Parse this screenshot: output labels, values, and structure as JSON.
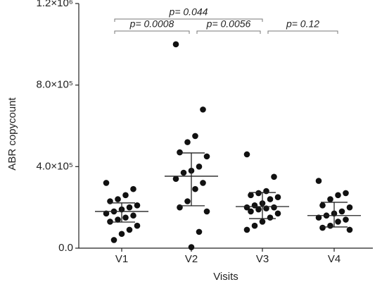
{
  "chart_data": {
    "type": "dotplot",
    "x_label": "Visits",
    "y_label": "ABR copycount",
    "ylim": [
      0,
      1200000
    ],
    "yticks": [
      {
        "value": 0,
        "label": "0.0"
      },
      {
        "value": 400000,
        "label": "4.0×10⁵"
      },
      {
        "value": 800000,
        "label": "8.0×10⁵"
      },
      {
        "value": 1200000,
        "label": "1.2×10⁶"
      }
    ],
    "color": "#111111",
    "groups": [
      {
        "name": "V1",
        "values": [
          320000,
          290000,
          260000,
          240000,
          230000,
          210000,
          200000,
          190000,
          180000,
          170000,
          160000,
          150000,
          140000,
          130000,
          110000,
          90000,
          70000,
          40000
        ],
        "center": 180000,
        "upper": 222000,
        "lower": 128000
      },
      {
        "name": "V2",
        "values": [
          1000000,
          680000,
          550000,
          520000,
          470000,
          450000,
          400000,
          380000,
          370000,
          340000,
          320000,
          290000,
          230000,
          200000,
          180000,
          80000,
          5000
        ],
        "center": 353000,
        "upper": 467000,
        "lower": 208000
      },
      {
        "name": "V3",
        "values": [
          460000,
          350000,
          280000,
          270000,
          260000,
          250000,
          240000,
          220000,
          210000,
          200000,
          200000,
          195000,
          190000,
          180000,
          170000,
          150000,
          130000,
          110000,
          90000
        ],
        "center": 204000,
        "upper": 273000,
        "lower": 145000
      },
      {
        "name": "V4",
        "values": [
          330000,
          270000,
          260000,
          240000,
          210000,
          200000,
          180000,
          170000,
          160000,
          150000,
          140000,
          130000,
          110000,
          100000,
          90000
        ],
        "center": 160000,
        "upper": 225000,
        "lower": 104000
      }
    ],
    "annotations": [
      {
        "label": "p= 0.044",
        "between": [
          "V1",
          "V3"
        ]
      },
      {
        "label": "p= 0.0008",
        "between": [
          "V1",
          "V2"
        ]
      },
      {
        "label": "p= 0.0056",
        "between": [
          "V2",
          "V3"
        ]
      },
      {
        "label": "p= 0.12",
        "between": [
          "V3",
          "V4"
        ]
      }
    ]
  }
}
